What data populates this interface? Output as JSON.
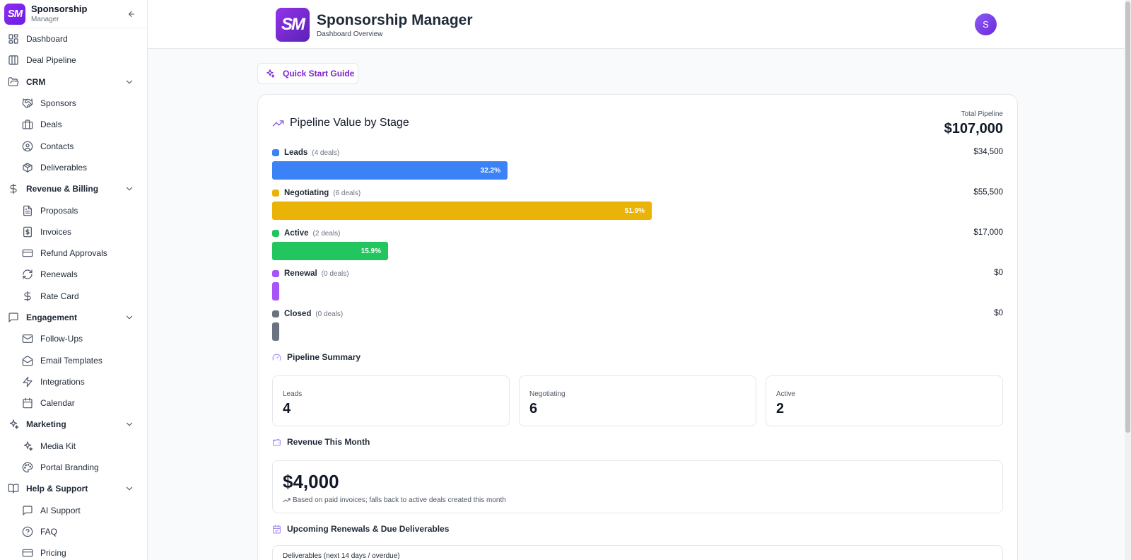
{
  "brand": {
    "logo_text": "SM",
    "name": "Sponsorship",
    "sub": "Manager",
    "app_title": "Sponsorship Manager",
    "app_subtitle": "Dashboard Overview",
    "avatar_initial": "S"
  },
  "sidebar": {
    "items": [
      {
        "label": "Dashboard",
        "icon": "dashboard-icon",
        "level": 0
      },
      {
        "label": "Deal Pipeline",
        "icon": "columns-icon",
        "level": 0
      },
      {
        "label": "CRM",
        "icon": "folder-open-icon",
        "level": 0,
        "group": true
      },
      {
        "label": "Sponsors",
        "icon": "handshake-icon",
        "level": 1
      },
      {
        "label": "Deals",
        "icon": "briefcase-icon",
        "level": 1
      },
      {
        "label": "Contacts",
        "icon": "user-circle-icon",
        "level": 1
      },
      {
        "label": "Deliverables",
        "icon": "package-icon",
        "level": 1
      },
      {
        "label": "Revenue & Billing",
        "icon": "dollar-icon",
        "level": 0,
        "group": true
      },
      {
        "label": "Proposals",
        "icon": "file-text-icon",
        "level": 1
      },
      {
        "label": "Invoices",
        "icon": "invoice-icon",
        "level": 1
      },
      {
        "label": "Refund Approvals",
        "icon": "credit-card-icon",
        "level": 1
      },
      {
        "label": "Renewals",
        "icon": "refresh-icon",
        "level": 1
      },
      {
        "label": "Rate Card",
        "icon": "dollar-icon",
        "level": 1
      },
      {
        "label": "Engagement",
        "icon": "message-square-icon",
        "level": 0,
        "group": true
      },
      {
        "label": "Follow-Ups",
        "icon": "mail-icon",
        "level": 1
      },
      {
        "label": "Email Templates",
        "icon": "mail-open-icon",
        "level": 1
      },
      {
        "label": "Integrations",
        "icon": "zap-icon",
        "level": 1
      },
      {
        "label": "Calendar",
        "icon": "calendar-icon",
        "level": 1
      },
      {
        "label": "Marketing",
        "icon": "sparkles-icon",
        "level": 0,
        "group": true
      },
      {
        "label": "Media Kit",
        "icon": "sparkles-icon",
        "level": 1
      },
      {
        "label": "Portal Branding",
        "icon": "palette-icon",
        "level": 1
      },
      {
        "label": "Help & Support",
        "icon": "book-open-icon",
        "level": 0,
        "group": true
      },
      {
        "label": "AI Support",
        "icon": "message-square-icon",
        "level": 1
      },
      {
        "label": "FAQ",
        "icon": "help-circle-icon",
        "level": 1
      },
      {
        "label": "Pricing",
        "icon": "credit-card-icon",
        "level": 1
      }
    ]
  },
  "quick_start": {
    "label": "Quick Start Guide"
  },
  "pipeline": {
    "title": "Pipeline Value by Stage",
    "total_label": "Total Pipeline",
    "total_value": "$107,000",
    "stages": [
      {
        "name": "Leads",
        "count": "(4 deals)",
        "amount": "$34,500",
        "pct_label": "32.2%",
        "pct": 0.322,
        "color": "#3b82f6"
      },
      {
        "name": "Negotiating",
        "count": "(6 deals)",
        "amount": "$55,500",
        "pct_label": "51.9%",
        "pct": 0.519,
        "color": "#eab308"
      },
      {
        "name": "Active",
        "count": "(2 deals)",
        "amount": "$17,000",
        "pct_label": "15.9%",
        "pct": 0.159,
        "color": "#22c55e"
      },
      {
        "name": "Renewal",
        "count": "(0 deals)",
        "amount": "$0",
        "pct_label": "",
        "pct": 0,
        "color": "#a855f7"
      },
      {
        "name": "Closed",
        "count": "(0 deals)",
        "amount": "$0",
        "pct_label": "",
        "pct": 0,
        "color": "#6b7280"
      }
    ]
  },
  "summary": {
    "title": "Pipeline Summary",
    "boxes": [
      {
        "label": "Leads",
        "value": "4"
      },
      {
        "label": "Negotiating",
        "value": "6"
      },
      {
        "label": "Active",
        "value": "2"
      }
    ]
  },
  "revenue": {
    "title": "Revenue This Month",
    "value": "$4,000",
    "note": "Based on paid invoices; falls back to active deals created this month"
  },
  "upcoming": {
    "title": "Upcoming Renewals & Due Deliverables",
    "deliverables_label": "Deliverables (next 14 days / overdue)"
  }
}
